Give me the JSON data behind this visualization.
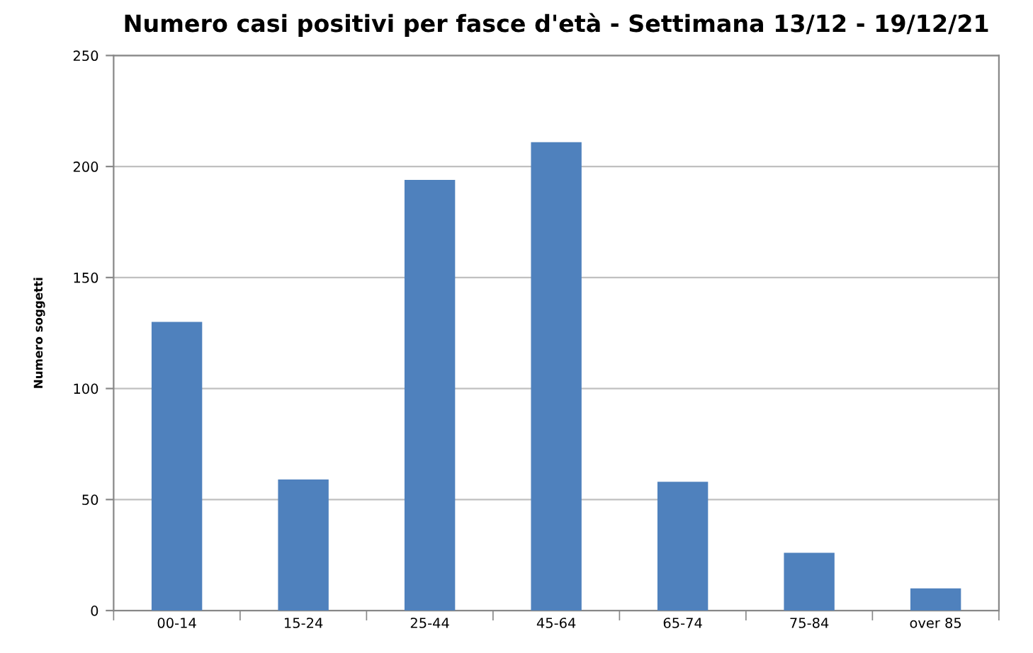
{
  "chart_data": {
    "type": "bar",
    "title": "Numero casi positivi per fasce d'età - Settimana 13/12 - 19/12/21",
    "ylabel": "Numero soggetti",
    "categories": [
      "00-14",
      "15-24",
      "25-44",
      "45-64",
      "65-74",
      "75-84",
      "over 85"
    ],
    "values": [
      130,
      59,
      194,
      211,
      58,
      26,
      10
    ],
    "color": "#4f81bd",
    "ylim": [
      0,
      250
    ],
    "yticks": [
      0,
      50,
      100,
      150,
      200,
      250
    ],
    "grid": "y",
    "legend": false
  }
}
